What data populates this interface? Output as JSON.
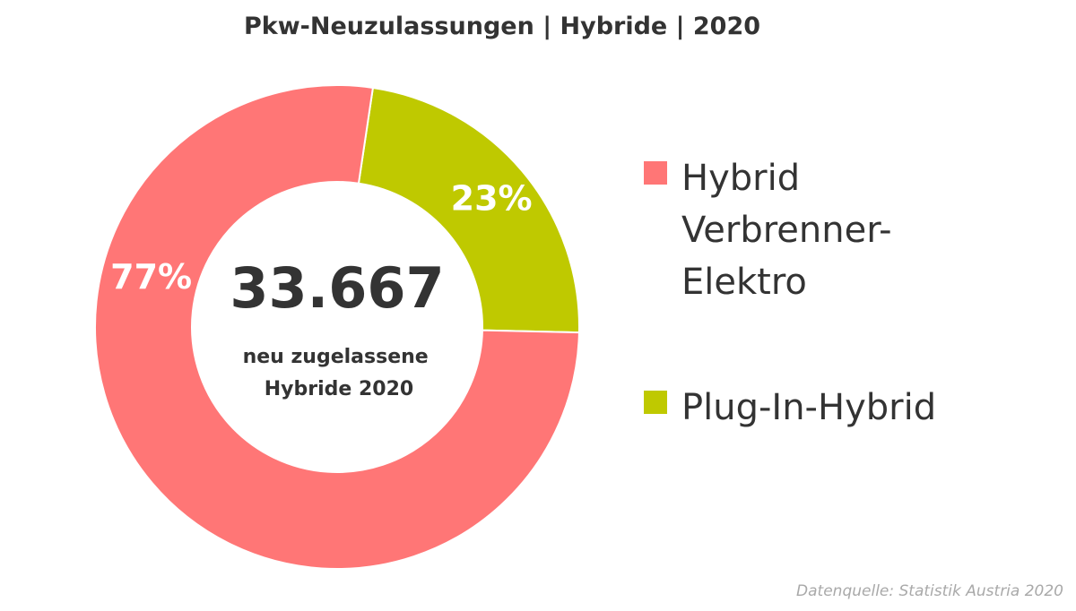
{
  "chart_data": {
    "type": "pie",
    "title": "Pkw-Neuzulassungen | Hybride | 2020",
    "center_value": "33.667",
    "center_label": "neu zugelassene\nHybride 2020",
    "slices": [
      {
        "label": "Plug-In-Hybrid",
        "value": 23,
        "value_label": "23%",
        "color": "#bfc900"
      },
      {
        "label": "Hybrid\nVerbrenner-\nElektro",
        "value": 77,
        "value_label": "77%",
        "color": "#ff7676"
      }
    ],
    "legend_position": "right",
    "source": "Datenquelle: Statistik Austria 2020"
  }
}
